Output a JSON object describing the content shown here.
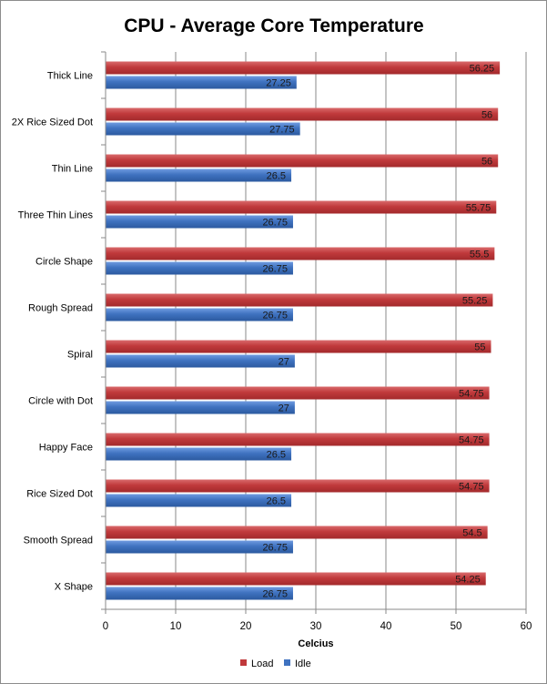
{
  "chart_data": {
    "type": "bar",
    "orientation": "horizontal",
    "title": "CPU - Average Core Temperature",
    "xlabel": "Celcius",
    "ylabel": "",
    "xlim": [
      0,
      60
    ],
    "ticks": [
      0,
      10,
      20,
      30,
      40,
      50,
      60
    ],
    "grid": true,
    "legend_position": "bottom",
    "categories": [
      "Thick Line",
      "2X Rice Sized Dot",
      "Thin Line",
      "Three Thin Lines",
      "Circle Shape",
      "Rough Spread",
      "Spiral",
      "Circle with Dot",
      "Happy Face",
      "Rice Sized Dot",
      "Smooth Spread",
      "X Shape"
    ],
    "series": [
      {
        "name": "Load",
        "color": "#C0393B",
        "values": [
          56.25,
          56,
          56,
          55.75,
          55.5,
          55.25,
          55,
          54.75,
          54.75,
          54.75,
          54.5,
          54.25
        ]
      },
      {
        "name": "Idle",
        "color": "#3F72C0",
        "values": [
          27.25,
          27.75,
          26.5,
          26.75,
          26.75,
          26.75,
          27,
          27,
          26.5,
          26.5,
          26.75,
          26.75
        ]
      }
    ]
  }
}
